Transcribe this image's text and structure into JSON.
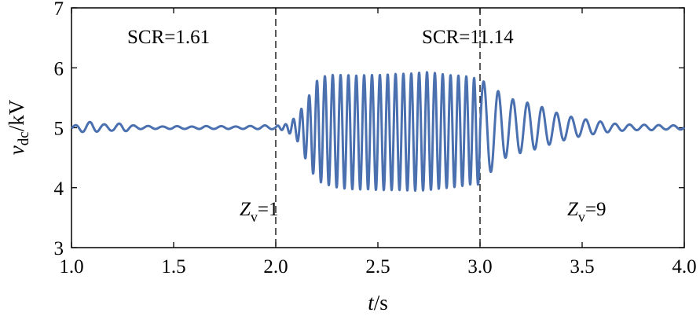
{
  "chart_data": {
    "type": "line",
    "title": "",
    "xlabel_var": "t",
    "xlabel_unit": "/s",
    "ylabel_var": "v",
    "ylabel_sub": "dc",
    "ylabel_unit": "/kV",
    "xlim": [
      1.0,
      4.0
    ],
    "ylim": [
      3,
      7
    ],
    "x_ticks": [
      1.0,
      1.5,
      2.0,
      2.5,
      3.0,
      3.5,
      4.0
    ],
    "x_tick_labels": [
      "1.0",
      "1.5",
      "2.0",
      "2.5",
      "3.0",
      "3.5",
      "4.0"
    ],
    "y_ticks": [
      3,
      4,
      5,
      6,
      7
    ],
    "y_tick_labels": [
      "3",
      "4",
      "5",
      "6",
      "7"
    ],
    "grid": false,
    "line_color": "#4a70b0",
    "vlines": [
      2.0,
      3.0
    ],
    "annotations": {
      "scr_low": "SCR=1.61",
      "scr_high": "SCR=11.14",
      "zv1_var": "Z",
      "zv1_sub": "v",
      "zv1_val": "=1",
      "zv9_var": "Z",
      "zv9_sub": "v",
      "zv9_val": "=9"
    },
    "series": [
      {
        "x": [
          1.0,
          1.05,
          1.1,
          1.15,
          1.2,
          1.25,
          1.3,
          1.35,
          1.4,
          1.45,
          1.5,
          1.55,
          1.6,
          1.65,
          1.7,
          1.75,
          1.8,
          1.85,
          1.9,
          1.95,
          2.0,
          2.05,
          2.1,
          2.15,
          2.2,
          2.25,
          2.3,
          2.35,
          2.4,
          2.45,
          2.5,
          2.55,
          2.6,
          2.65,
          2.7,
          2.75,
          2.8,
          2.85,
          2.9,
          2.95,
          3.0,
          3.05,
          3.1,
          3.15,
          3.2,
          3.25,
          3.3,
          3.35,
          3.4,
          3.45,
          3.5,
          3.55,
          3.6,
          3.65,
          3.7,
          3.75,
          3.8,
          3.85,
          3.9,
          3.95,
          4.0
        ],
        "upper": [
          5.02,
          5.08,
          5.1,
          5.06,
          5.05,
          5.08,
          5.04,
          5.03,
          5.03,
          5.02,
          5.03,
          5.02,
          5.02,
          5.03,
          5.02,
          5.03,
          5.02,
          5.03,
          5.03,
          5.04,
          5.03,
          5.06,
          5.18,
          5.45,
          5.78,
          5.88,
          5.88,
          5.88,
          5.87,
          5.88,
          5.88,
          5.89,
          5.9,
          5.9,
          5.92,
          5.93,
          5.9,
          5.88,
          5.87,
          5.85,
          5.8,
          5.72,
          5.58,
          5.48,
          5.45,
          5.4,
          5.35,
          5.28,
          5.22,
          5.18,
          5.15,
          5.12,
          5.1,
          5.07,
          5.06,
          5.05,
          5.05,
          5.05,
          5.04,
          5.04,
          5.04
        ],
        "lower": [
          4.96,
          4.93,
          4.92,
          4.95,
          4.95,
          4.93,
          4.97,
          4.98,
          4.98,
          4.98,
          4.98,
          4.98,
          4.98,
          4.98,
          4.98,
          4.98,
          4.98,
          4.98,
          4.98,
          4.97,
          4.98,
          4.95,
          4.82,
          4.45,
          4.12,
          4.05,
          4.0,
          3.98,
          3.97,
          3.97,
          3.96,
          3.96,
          3.96,
          3.95,
          3.95,
          3.96,
          3.98,
          4.0,
          4.02,
          4.05,
          4.05,
          4.25,
          4.45,
          4.55,
          4.58,
          4.62,
          4.67,
          4.73,
          4.78,
          4.83,
          4.86,
          4.89,
          4.91,
          4.94,
          4.95,
          4.96,
          4.96,
          4.96,
          4.97,
          4.97,
          4.97
        ]
      }
    ]
  }
}
